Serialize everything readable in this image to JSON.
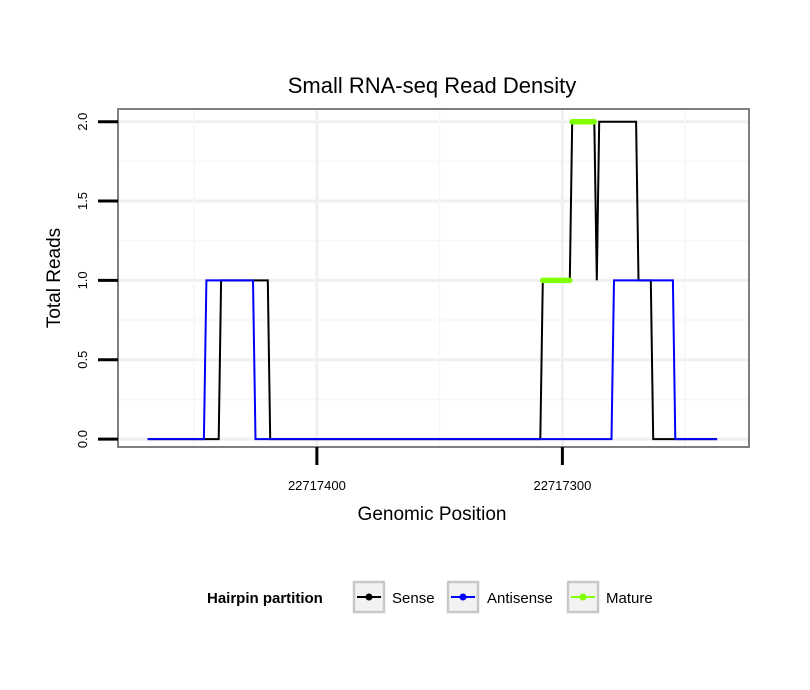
{
  "chart_data": {
    "type": "line",
    "title": "Small RNA-seq Read Density",
    "xlabel": "Genomic Position",
    "ylabel": "Total Reads",
    "x_reversed": true,
    "xlim": [
      22717481,
      22717224
    ],
    "ylim": [
      -0.05,
      2.08
    ],
    "x_ticks": [
      22717400,
      22717300
    ],
    "x_tick_labels": [
      "22717400",
      "22717300"
    ],
    "y_ticks": [
      0,
      0.5,
      1,
      1.5,
      2
    ],
    "y_tick_labels": [
      "0.0",
      "0.5",
      "1.0",
      "1.5",
      "2.0"
    ],
    "grid": true,
    "legend": {
      "title": "Hairpin partition",
      "position": "bottom",
      "entries": [
        "Sense",
        "Antisense",
        "Mature"
      ]
    },
    "series": [
      {
        "name": "Sense",
        "color": "#000000",
        "x": [
          22717469,
          22717440,
          22717439,
          22717420,
          22717419,
          22717309,
          22717308,
          22717297,
          22717296,
          22717287,
          22717286,
          22717285,
          22717284,
          22717270,
          22717269,
          22717264,
          22717263,
          22717237
        ],
        "y": [
          0,
          0,
          1,
          1,
          0,
          0,
          1,
          1,
          2,
          2,
          1,
          2,
          2,
          2,
          1,
          1,
          0,
          0
        ]
      },
      {
        "name": "Antisense",
        "color": "#0000ff",
        "x": [
          22717469,
          22717446,
          22717445,
          22717426,
          22717425,
          22717280,
          22717279,
          22717265,
          22717264,
          22717255,
          22717254,
          22717237
        ],
        "y": [
          0,
          0,
          1,
          1,
          0,
          0,
          1,
          1,
          1,
          1,
          0,
          0
        ]
      },
      {
        "name": "Mature",
        "color": "#7fff00",
        "segments": [
          {
            "x": [
              22717308,
              22717297
            ],
            "y": [
              1,
              1
            ]
          },
          {
            "x": [
              22717296,
              22717287
            ],
            "y": [
              2,
              2
            ]
          }
        ]
      }
    ]
  }
}
